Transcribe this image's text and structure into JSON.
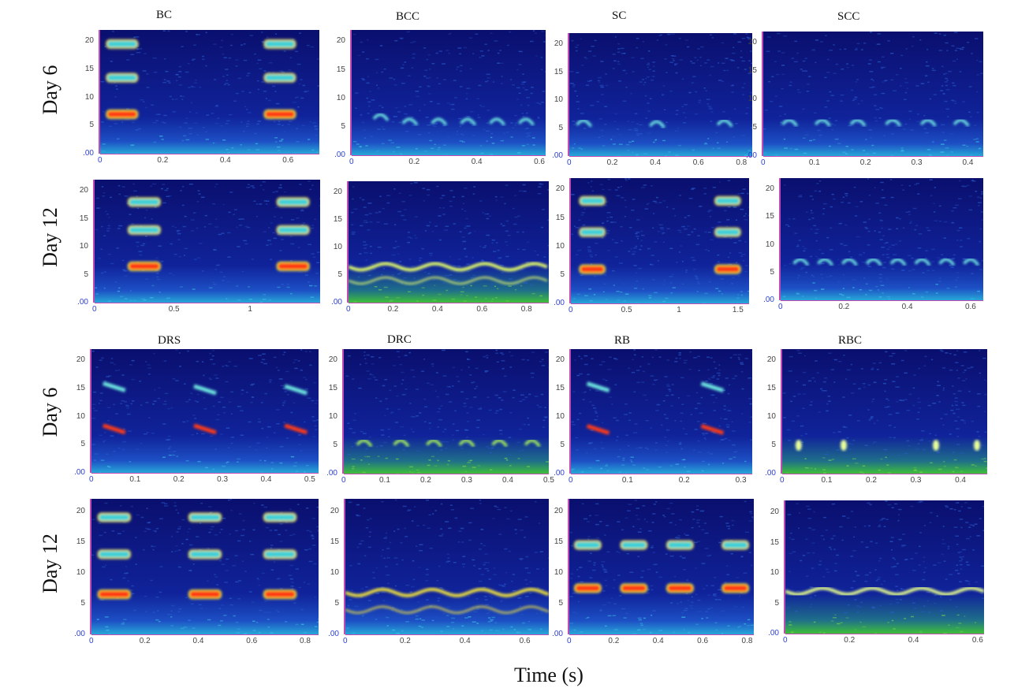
{
  "figure": {
    "x_axis_label": "Time (s)",
    "row_labels": [
      "Day 6",
      "Day 12",
      "Day 6",
      "Day 12"
    ],
    "column_titles_top": [
      "BC",
      "BCC",
      "SC",
      "SCC"
    ],
    "column_titles_bottom": [
      "DRS",
      "DRC",
      "RB",
      "RBC"
    ],
    "y_ticks": [
      "20",
      "15",
      "10",
      "5",
      ".00"
    ],
    "panels": [
      {
        "id": "bc-day6",
        "x_ticks": [
          "0",
          "0.2",
          "0.4",
          "0.6"
        ],
        "xmax": 0.7,
        "palette": "jet"
      },
      {
        "id": "bcc-day6",
        "x_ticks": [
          "0",
          "0.2",
          "0.4",
          "0.6"
        ],
        "xmax": 0.62,
        "palette": "jet"
      },
      {
        "id": "sc-day6",
        "x_ticks": [
          "0",
          "0.2",
          "0.4",
          "0.6",
          "0.8"
        ],
        "xmax": 0.85,
        "palette": "jet"
      },
      {
        "id": "scc-day6",
        "x_ticks": [
          "0",
          "0.1",
          "0.2",
          "0.3",
          "0.4"
        ],
        "xmax": 0.43,
        "palette": "jet"
      },
      {
        "id": "bc-day12",
        "x_ticks": [
          "0",
          "0.5",
          "1"
        ],
        "xmax": 1.42,
        "palette": "jet"
      },
      {
        "id": "bcc-day12",
        "x_ticks": [
          "0",
          "0.2",
          "0.4",
          "0.6",
          "0.8"
        ],
        "xmax": 0.9,
        "palette": "green"
      },
      {
        "id": "sc-day12",
        "x_ticks": [
          "0",
          "0.5",
          "1",
          "1.5"
        ],
        "xmax": 1.6,
        "palette": "jet"
      },
      {
        "id": "scc-day12",
        "x_ticks": [
          "0",
          "0.2",
          "0.4",
          "0.6"
        ],
        "xmax": 0.64,
        "palette": "jet"
      },
      {
        "id": "drs-day6",
        "x_ticks": [
          "0",
          "0.1",
          "0.2",
          "0.3",
          "0.4",
          "0.5"
        ],
        "xmax": 0.52,
        "palette": "jet"
      },
      {
        "id": "drc-day6",
        "x_ticks": [
          "0",
          "0.1",
          "0.2",
          "0.3",
          "0.4",
          "0.5"
        ],
        "xmax": 0.5,
        "palette": "green"
      },
      {
        "id": "rb-day6",
        "x_ticks": [
          "0",
          "0.1",
          "0.2",
          "0.3"
        ],
        "xmax": 0.32,
        "palette": "jet"
      },
      {
        "id": "rbc-day6",
        "x_ticks": [
          "0",
          "0.1",
          "0.2",
          "0.3",
          "0.4"
        ],
        "xmax": 0.46,
        "palette": "green"
      },
      {
        "id": "drs-day12",
        "x_ticks": [
          "0",
          "0.2",
          "0.4",
          "0.6",
          "0.8"
        ],
        "xmax": 0.85,
        "palette": "jet"
      },
      {
        "id": "drc-day12",
        "x_ticks": [
          "0",
          "0.2",
          "0.4",
          "0.6"
        ],
        "xmax": 0.68,
        "palette": "jet"
      },
      {
        "id": "rb-day12",
        "x_ticks": [
          "0",
          "0.2",
          "0.4",
          "0.6",
          "0.8"
        ],
        "xmax": 0.83,
        "palette": "jet"
      },
      {
        "id": "rbc-day12",
        "x_ticks": [
          "0",
          "0.2",
          "0.4",
          "0.6"
        ],
        "xmax": 0.62,
        "palette": "green"
      }
    ]
  }
}
